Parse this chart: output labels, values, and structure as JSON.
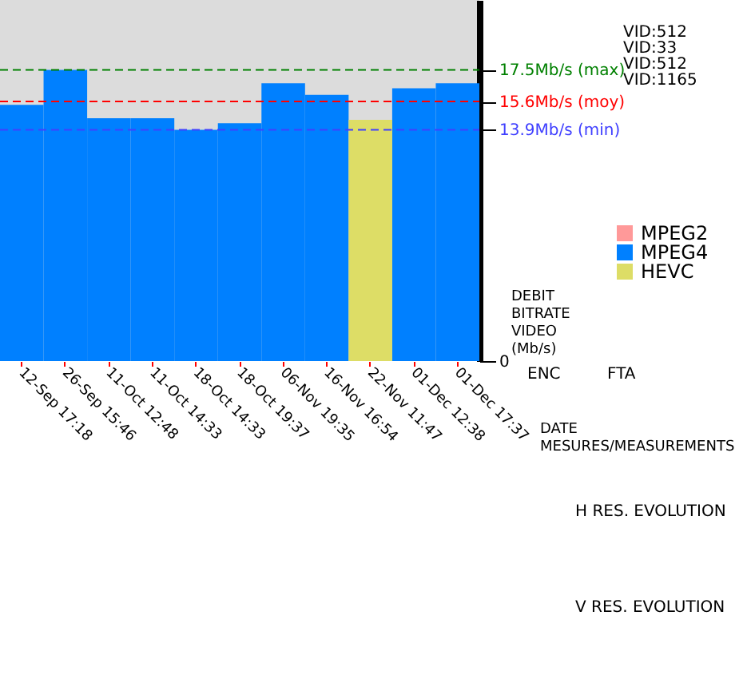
{
  "chart_data": {
    "type": "bar",
    "categories": [
      "12-Sep 17:18",
      "26-Sep 15:46",
      "11-Oct 12:48",
      "11-Oct 14:33",
      "18-Oct 14:33",
      "18-Oct 19:37",
      "06-Nov 19:35",
      "16-Nov 16:54",
      "22-Nov 11:47",
      "01-Dec 12:38",
      "01-Dec 17:37"
    ],
    "series": [
      {
        "name": "MPEG2",
        "color": "#ff9999",
        "values": [
          null,
          null,
          null,
          null,
          null,
          null,
          null,
          null,
          null,
          null,
          null
        ]
      },
      {
        "name": "MPEG4",
        "color": "#0080ff",
        "values": [
          15.4,
          17.5,
          14.6,
          14.6,
          13.9,
          14.3,
          16.7,
          16.0,
          null,
          16.4,
          16.7
        ]
      },
      {
        "name": "HEVC",
        "color": "#dddd66",
        "values": [
          null,
          null,
          null,
          null,
          null,
          null,
          null,
          null,
          14.5,
          null,
          null
        ]
      }
    ],
    "ylim": [
      0,
      21.7
    ],
    "yticks": [
      0,
      {
        "value": 17.5,
        "label": "17.5Mb/s (max)"
      },
      {
        "value": 15.6,
        "label": "15.6Mb/s (moy)"
      },
      {
        "value": 13.9,
        "label": "13.9Mb/s (min)"
      }
    ],
    "ylabel": "DEBIT BITRATE VIDEO (Mb/s)",
    "xlabel": "DATE MESURES/MEASUREMENTS",
    "ref_lines": [
      {
        "axis": "y",
        "value": 17.5,
        "color": "#008000",
        "line_style": "dashed"
      },
      {
        "axis": "y",
        "value": 15.6,
        "color": "#ff0000",
        "line_style": "dashed"
      },
      {
        "axis": "y",
        "value": 13.9,
        "color": "#4040ff",
        "line_style": "dashed"
      }
    ],
    "annotations": [
      "VID:512",
      "VID:33",
      "VID:512",
      "VID:1165",
      "ENC",
      "FTA",
      "H RES. EVOLUTION",
      "V RES. EVOLUTION"
    ],
    "legend": "right",
    "grid": false
  }
}
